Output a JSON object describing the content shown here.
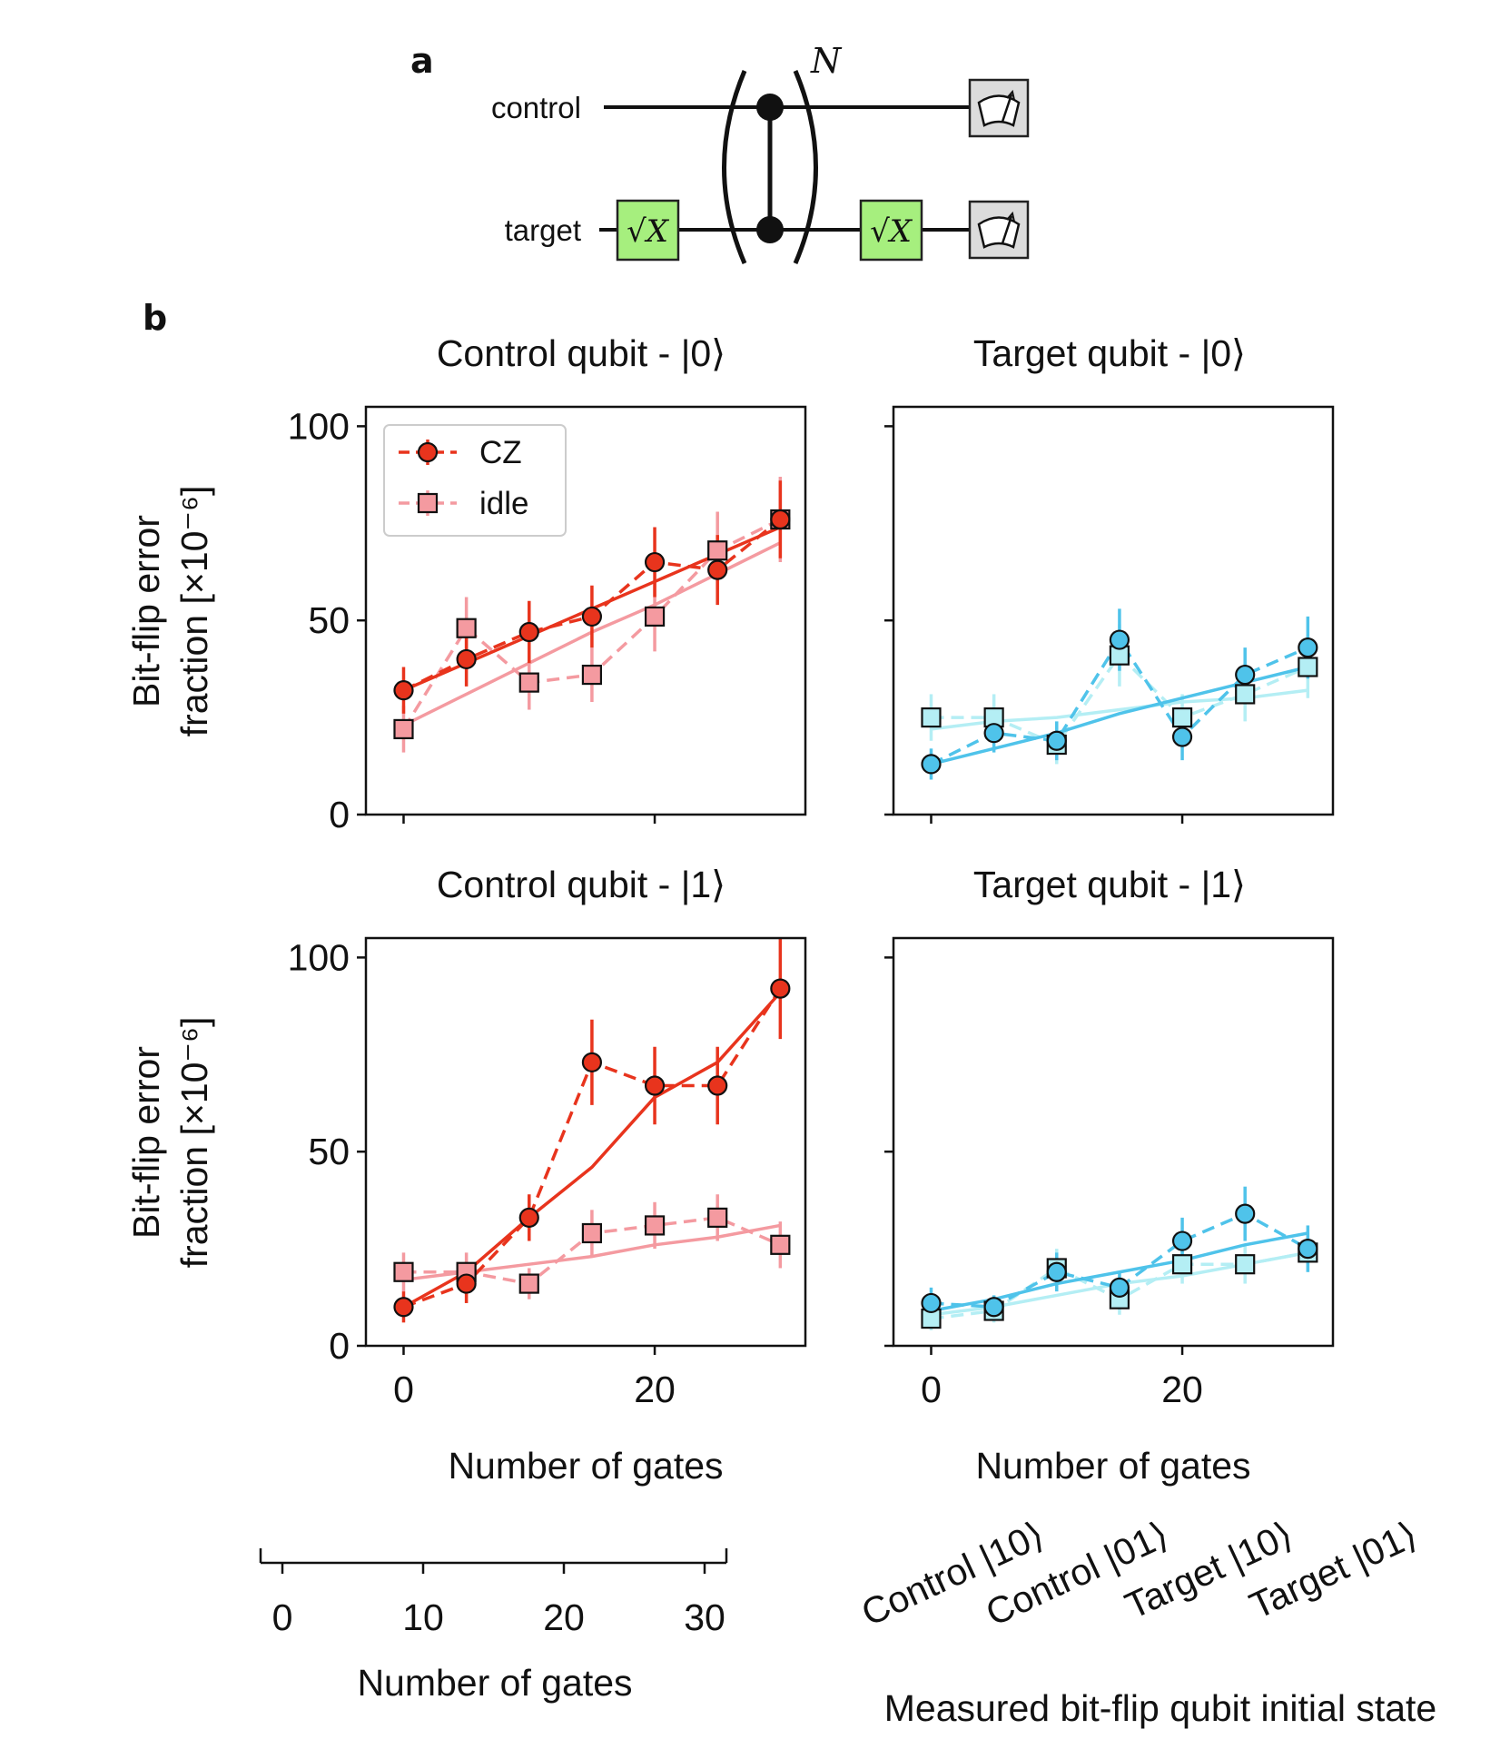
{
  "panel_labels": {
    "a": "a",
    "b": "b"
  },
  "circuit": {
    "control_label": "control",
    "target_label": "target",
    "gate_label": "√X",
    "repeat_label": "N",
    "gate_color": "#a6ef7e",
    "meter_color": "#dcdcdc"
  },
  "colors": {
    "cz_control": "#e8341d",
    "idle_control": "#f49aa0",
    "cz_target": "#4fc3ea",
    "idle_target": "#b4eef4"
  },
  "legend": {
    "cz": "CZ",
    "idle": "idle"
  },
  "axes_text": {
    "ylabel_line1": "Bit-flip error",
    "ylabel_line2": "fraction [×10⁻⁶]",
    "xlabel": "Number of gates"
  },
  "chart_data": [
    {
      "type": "line",
      "title": "Control qubit - |0⟩",
      "xlabel": "",
      "ylabel": "Bit-flip error fraction [×10⁻⁶]",
      "xlim": [
        -3,
        32
      ],
      "ylim": [
        0,
        105
      ],
      "xticks": [
        0,
        20
      ],
      "yticks": [
        0,
        50,
        100
      ],
      "grid": false,
      "legend": "top-left",
      "x": [
        0,
        5,
        10,
        15,
        20,
        25,
        30
      ],
      "series": [
        {
          "name": "CZ",
          "style": "circle",
          "color": "#e8341d",
          "values": [
            32,
            40,
            47,
            51,
            65,
            63,
            76
          ],
          "errors": [
            6,
            7,
            8,
            8,
            9,
            9,
            10
          ],
          "fit": [
            32,
            39,
            46,
            53,
            60,
            67,
            74
          ]
        },
        {
          "name": "idle",
          "style": "square",
          "color": "#f49aa0",
          "values": [
            22,
            48,
            34,
            36,
            51,
            68,
            76
          ],
          "errors": [
            6,
            8,
            7,
            7,
            9,
            10,
            11
          ],
          "fit": [
            23,
            31,
            39,
            47,
            54,
            62,
            70
          ]
        }
      ]
    },
    {
      "type": "line",
      "title": "Target qubit - |0⟩",
      "xlabel": "",
      "ylabel": "",
      "xlim": [
        -3,
        32
      ],
      "ylim": [
        0,
        105
      ],
      "xticks": [
        0,
        20
      ],
      "yticks": [
        0,
        50,
        100
      ],
      "grid": false,
      "x": [
        0,
        5,
        10,
        15,
        20,
        25,
        30
      ],
      "series": [
        {
          "style": "circle",
          "color": "#4fc3ea",
          "values": [
            13,
            21,
            19,
            45,
            20,
            36,
            43
          ],
          "errors": [
            4,
            5,
            5,
            8,
            6,
            7,
            8
          ],
          "fit": [
            13,
            17,
            21,
            26,
            30,
            34,
            38
          ]
        },
        {
          "style": "square",
          "color": "#b4eef4",
          "values": [
            25,
            25,
            18,
            41,
            25,
            31,
            38
          ],
          "errors": [
            6,
            6,
            5,
            8,
            6,
            7,
            8
          ],
          "fit": [
            22,
            24,
            25,
            27,
            29,
            30,
            32
          ]
        }
      ]
    },
    {
      "type": "line",
      "title": "Control qubit - |1⟩",
      "xlabel": "Number of gates",
      "ylabel": "Bit-flip error fraction [×10⁻⁶]",
      "xlim": [
        -3,
        32
      ],
      "ylim": [
        0,
        105
      ],
      "xticks": [
        0,
        20
      ],
      "yticks": [
        0,
        50,
        100
      ],
      "grid": false,
      "x": [
        0,
        5,
        10,
        15,
        20,
        25,
        30
      ],
      "series": [
        {
          "style": "circle",
          "color": "#e8341d",
          "values": [
            10,
            16,
            33,
            73,
            67,
            67,
            92
          ],
          "errors": [
            4,
            5,
            6,
            11,
            10,
            10,
            13
          ],
          "fit": [
            10,
            19,
            33,
            46,
            64,
            73,
            91
          ]
        },
        {
          "style": "square",
          "color": "#f49aa0",
          "values": [
            19,
            19,
            16,
            29,
            31,
            33,
            26
          ],
          "errors": [
            5,
            5,
            4,
            6,
            6,
            6,
            6
          ],
          "fit": [
            17,
            19,
            21,
            23,
            26,
            28,
            31
          ]
        }
      ]
    },
    {
      "type": "line",
      "title": "Target qubit - |1⟩",
      "xlabel": "Number of gates",
      "ylabel": "",
      "xlim": [
        -3,
        32
      ],
      "ylim": [
        0,
        105
      ],
      "xticks": [
        0,
        20
      ],
      "yticks": [
        0,
        50,
        100
      ],
      "grid": false,
      "x": [
        0,
        5,
        10,
        15,
        20,
        25,
        30
      ],
      "series": [
        {
          "style": "circle",
          "color": "#4fc3ea",
          "values": [
            11,
            10,
            19,
            15,
            27,
            34,
            25
          ],
          "errors": [
            4,
            3,
            5,
            4,
            6,
            7,
            6
          ],
          "fit": [
            9,
            12,
            16,
            19,
            22,
            26,
            29
          ]
        },
        {
          "style": "square",
          "color": "#b4eef4",
          "values": [
            7,
            9,
            20,
            12,
            21,
            21,
            24
          ],
          "errors": [
            3,
            3,
            5,
            4,
            5,
            5,
            5
          ],
          "fit": [
            8,
            10,
            13,
            16,
            18,
            21,
            24
          ]
        }
      ]
    }
  ],
  "extra_axes": {
    "number_axis": {
      "ticks": [
        "0",
        "10",
        "20",
        "30"
      ],
      "label": "Number of gates"
    },
    "state_axis": {
      "ticks": [
        "Control |10⟩",
        "Control |01⟩",
        "Target |10⟩",
        "Target |01⟩"
      ],
      "label": "Measured bit-flip qubit initial state"
    }
  }
}
